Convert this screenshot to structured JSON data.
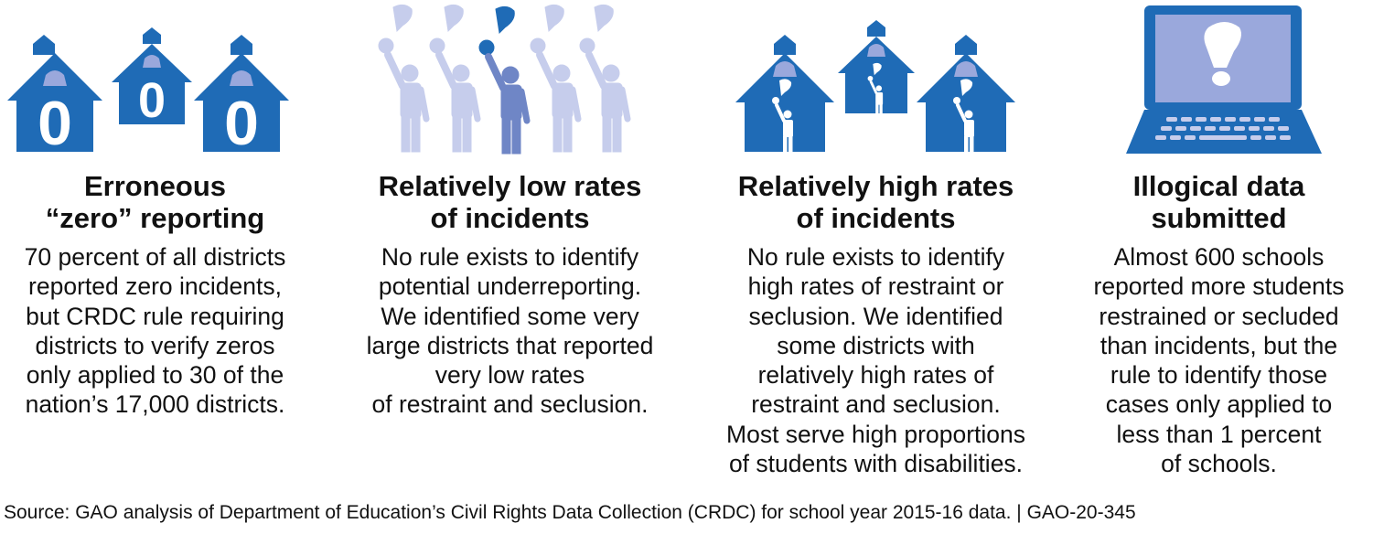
{
  "colors": {
    "blue": "#1f6bb6",
    "light_blue": "#9aa8dc",
    "pale_blue": "#c6cdec",
    "white": "#ffffff"
  },
  "panels": [
    {
      "icon": "zero-schoolhouses-icon",
      "icon_text": "0",
      "title": "Erroneous\n“zero” reporting",
      "text": "70 percent of all districts\nreported zero incidents,\nbut CRDC rule requiring\ndistricts to verify zeros\nonly applied to 30 of the\nnation’s 17,000 districts."
    },
    {
      "icon": "people-raising-hands-icon",
      "title": "Relatively low rates\nof incidents",
      "text": "No rule exists to identify\npotential underreporting.\nWe identified some very\nlarge districts that reported\nvery low rates\nof restraint and seclusion."
    },
    {
      "icon": "schoolhouses-with-students-icon",
      "title": "Relatively high rates\nof incidents",
      "text": "No rule exists to identify\nhigh rates of restraint or\nseclusion. We identified\nsome districts with\nrelatively high rates of\nrestraint and seclusion.\nMost serve high proportions\nof students with disabilities."
    },
    {
      "icon": "laptop-exclamation-icon",
      "title": "Illogical data\nsubmitted",
      "text": "Almost 600 schools\nreported more students\nrestrained or secluded\nthan incidents, but the\nrule to identify those\ncases only applied to\nless than 1 percent\nof schools."
    }
  ],
  "source": "Source: GAO analysis of Department of Education’s Civil Rights Data Collection (CRDC) for school year 2015-16 data.  |  GAO-20-345"
}
